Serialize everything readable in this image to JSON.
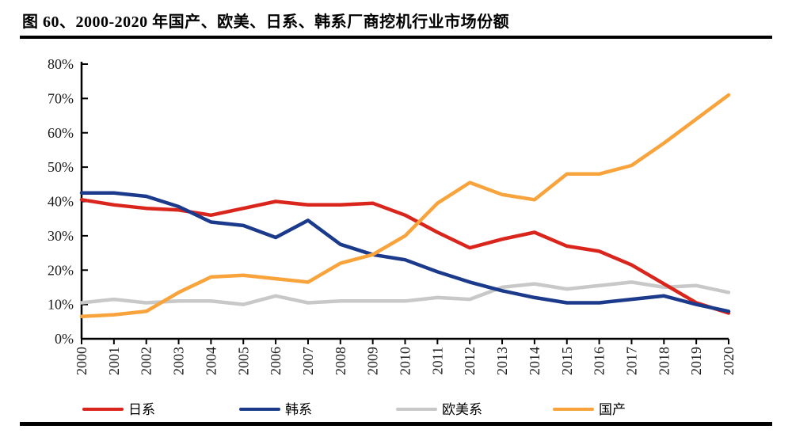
{
  "title": "图 60、2000-2020 年国产、欧美、日系、韩系厂商挖机行业市场份额",
  "chart_data": {
    "type": "line",
    "x": [
      2000,
      2001,
      2002,
      2003,
      2004,
      2005,
      2006,
      2007,
      2008,
      2009,
      2010,
      2011,
      2012,
      2013,
      2014,
      2015,
      2016,
      2017,
      2018,
      2019,
      2020
    ],
    "series": [
      {
        "name": "日系",
        "color": "#da251d",
        "values": [
          40.5,
          39,
          38,
          37.5,
          36,
          38,
          40,
          39,
          39,
          39.5,
          36,
          31,
          26.5,
          29,
          31,
          27,
          25.5,
          21.5,
          16,
          10.5,
          7.5
        ]
      },
      {
        "name": "韩系",
        "color": "#1b3a8c",
        "values": [
          42.5,
          42.5,
          41.5,
          38.5,
          34,
          33,
          29.5,
          34.5,
          27.5,
          24.5,
          23,
          19.5,
          16.5,
          14,
          12,
          10.5,
          10.5,
          11.5,
          12.5,
          10,
          8
        ]
      },
      {
        "name": "欧美系",
        "color": "#c8c8c8",
        "values": [
          10.5,
          11.5,
          10.5,
          11,
          11,
          10,
          12.5,
          10.5,
          11,
          11,
          11,
          12,
          11.5,
          15,
          16,
          14.5,
          15.5,
          16.5,
          15,
          15.5,
          13.5
        ]
      },
      {
        "name": "国产",
        "color": "#f8a33b",
        "values": [
          6.5,
          7,
          8,
          13.5,
          18,
          18.5,
          17.5,
          16.5,
          22,
          24.5,
          30,
          39.5,
          45.5,
          42,
          40.5,
          48,
          48,
          50.5,
          57,
          64,
          71
        ]
      }
    ],
    "title": "图 60、2000-2020 年国产、欧美、日系、韩系厂商挖机行业市场份额",
    "xlabel": "",
    "ylabel": "",
    "ylim": [
      0,
      80
    ],
    "y_tick_step": 10,
    "y_tick_suffix": "%",
    "x_tick_labels": [
      "2000",
      "2001",
      "2002",
      "2003",
      "2004",
      "2005",
      "2006",
      "2007",
      "2008",
      "2009",
      "2010",
      "2011",
      "2012",
      "2013",
      "2014",
      "2015",
      "2016",
      "2017",
      "2018",
      "2019",
      "2020"
    ],
    "grid": false,
    "legend_position": "bottom"
  },
  "axis": {
    "color": "#000000",
    "label_color": "#1a1a1a"
  }
}
